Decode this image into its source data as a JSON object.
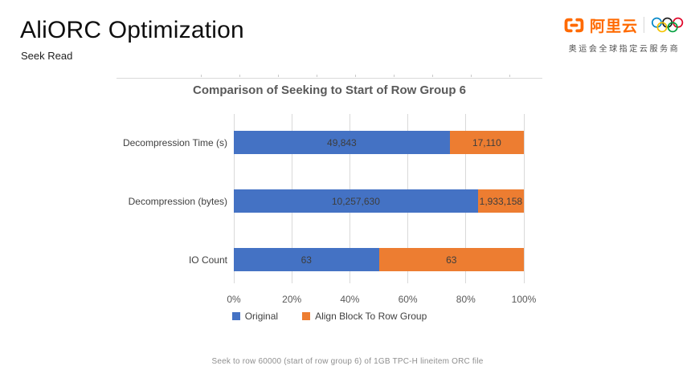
{
  "page": {
    "title": "AliORC Optimization",
    "subtitle": "Seek Read"
  },
  "logo": {
    "brand": "阿里云",
    "tagline": "奥运会全球指定云服务商",
    "brand_color": "#FF6A00"
  },
  "chart_data": {
    "type": "bar",
    "orientation": "horizontal",
    "stacked": "100%",
    "title": "Comparison of Seeking to Start of Row Group 6",
    "categories": [
      "Decompression Time (s)",
      "Decompression (bytes)",
      "IO Count"
    ],
    "series": [
      {
        "name": "Original",
        "color": "#4472C4",
        "values": [
          49843,
          10257630,
          63
        ],
        "labels": [
          "49,843",
          "10,257,630",
          "63"
        ]
      },
      {
        "name": "Align Block To Row Group",
        "color": "#ED7D31",
        "values": [
          17110,
          1933158,
          63
        ],
        "labels": [
          "17,110",
          "1,933,158",
          "63"
        ]
      }
    ],
    "x_ticks": [
      "0%",
      "20%",
      "40%",
      "60%",
      "80%",
      "100%"
    ],
    "xlim": [
      0,
      100
    ],
    "grid": true,
    "gridline_color": "#D9D9D9",
    "legend_position": "bottom",
    "value_label_color": "#3D3D3D"
  },
  "caption": "Seek to row 60000 (start of row group 6) of 1GB TPC-H lineitem ORC file"
}
